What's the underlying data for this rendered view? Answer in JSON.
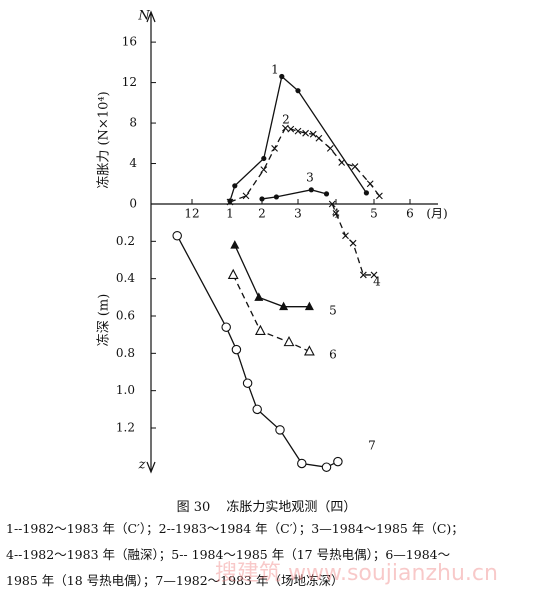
{
  "chart_data": [
    {
      "type": "line",
      "title": "",
      "ylabel": "冻胀力 (N×10⁴)",
      "y_axis_letter": "N",
      "xlabel_unit": "(月)",
      "x_ticks": [
        "12",
        "1",
        "2",
        "3",
        "4",
        "5",
        "6"
      ],
      "y_ticks": [
        "0",
        "4",
        "8",
        "12",
        "16"
      ],
      "ylim": [
        0,
        17
      ],
      "x_month_range": [
        11,
        7
      ],
      "series": [
        {
          "name": "1",
          "marker": "dot",
          "dash": false,
          "x": [
            1.0,
            1.15,
            2.05,
            2.55,
            3.0,
            4.8
          ],
          "y": [
            0.3,
            1.8,
            4.5,
            12.6,
            11.2,
            1.1
          ]
        },
        {
          "name": "2",
          "marker": "cross",
          "dash": true,
          "x": [
            1.0,
            1.5,
            2.05,
            2.35,
            2.65,
            2.8,
            3.0,
            3.2,
            3.4,
            3.55,
            3.85,
            4.15,
            4.5,
            4.9,
            5.15
          ],
          "y": [
            0.2,
            0.8,
            3.4,
            5.5,
            7.5,
            7.4,
            7.2,
            7.0,
            6.9,
            6.5,
            5.5,
            4.1,
            3.7,
            2.0,
            0.8
          ]
        },
        {
          "name": "3",
          "marker": "dot",
          "dash": false,
          "x": [
            2.0,
            2.4,
            3.35,
            3.75
          ],
          "y": [
            0.5,
            0.7,
            1.4,
            1.0
          ]
        }
      ]
    },
    {
      "type": "line",
      "title": "",
      "ylabel": "冻深 (m)",
      "y_axis_letter": "z",
      "y_ticks": [
        "0.2",
        "0.4",
        "0.6",
        "0.8",
        "1.0",
        "1.2"
      ],
      "ylim": [
        0,
        1.45
      ],
      "y_inverted": true,
      "series": [
        {
          "name": "4",
          "marker": "cross",
          "dash": true,
          "x": [
            3.9,
            4.0,
            4.25,
            4.45,
            4.72,
            5.0
          ],
          "y": [
            0.0,
            0.05,
            0.17,
            0.21,
            0.38,
            0.38
          ]
        },
        {
          "name": "5",
          "marker": "filled-triangle",
          "dash": false,
          "x": [
            1.15,
            1.9,
            2.6,
            3.3
          ],
          "y": [
            0.22,
            0.5,
            0.55,
            0.55
          ]
        },
        {
          "name": "6",
          "marker": "open-triangle",
          "dash": true,
          "x": [
            1.1,
            1.95,
            2.75,
            3.3
          ],
          "y": [
            0.38,
            0.68,
            0.74,
            0.79
          ]
        },
        {
          "name": "7",
          "marker": "open-circle",
          "dash": false,
          "x": [
            11.6,
            12.9,
            13.2,
            13.55,
            13.85,
            14.5,
            15.1,
            15.75,
            16.05
          ],
          "y": [
            0.17,
            0.66,
            0.78,
            0.96,
            1.1,
            1.21,
            1.39,
            1.41,
            1.38
          ]
        }
      ]
    }
  ],
  "caption": {
    "figure_number": "图 30",
    "title": "冻胀力实地观测（四）"
  },
  "legend": [
    "1--1982～1983 年（C′）；2--1983～1984 年（C′）；3—1984～1985 年（C)；",
    "4--1982～1983 年（融深）；5-- 1984～1985 年（17 号热电偶）；6—1984～",
    "1985 年（18 号热电偶）；7—1982～1983 年（场地冻深）"
  ],
  "watermark": "搜建筑  www.soujianzhu.cn",
  "colors": {
    "ink": "#111111",
    "watermark": "#f08a8a",
    "background": "#ffffff"
  }
}
